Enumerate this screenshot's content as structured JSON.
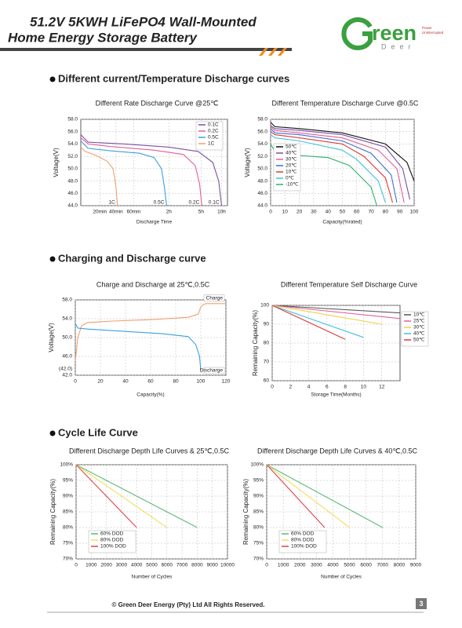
{
  "header": {
    "title_lines": [
      "51.2V 5KWH LiFePO4 Wall-Mounted",
      "Home Energy Storage Battery"
    ],
    "logo": {
      "word": "reen",
      "subword": "Deer",
      "tagline_lines": [
        "Power",
        "Uninterrupted"
      ]
    }
  },
  "sections": [
    "Different current/Temperature Discharge curves",
    "Charging and Discharge curve",
    "Cycle Life Curve"
  ],
  "footer": {
    "copyright": "© Green Deer Energy (Pty) Ltd All Rights Reserved.",
    "page": "3"
  },
  "chart_data": [
    {
      "type": "line",
      "title": "Different Rate Discharge Curve @25℃",
      "x_label": "Discharge Time",
      "y_label": "Voltage(V)",
      "grid": true,
      "legend": "top-right",
      "end_labels": true,
      "xlim": [
        0,
        100
      ],
      "xticks": [
        {
          "value": 13,
          "label": "20min"
        },
        {
          "value": 24,
          "label": "40min"
        },
        {
          "value": 36,
          "label": "60min"
        },
        {
          "value": 60,
          "label": "2h"
        },
        {
          "value": 82,
          "label": "5h"
        },
        {
          "value": 96,
          "label": "10h"
        }
      ],
      "ylim": [
        44,
        58
      ],
      "yticks": [
        {
          "value": 44,
          "label": "44.0"
        },
        {
          "value": 46,
          "label": "46.0"
        },
        {
          "value": 48,
          "label": "48.0"
        },
        {
          "value": 50,
          "label": "50.0"
        },
        {
          "value": 52,
          "label": "52.0"
        },
        {
          "value": 54,
          "label": "54.0"
        },
        {
          "value": 56,
          "label": "56.0"
        },
        {
          "value": 58,
          "label": "58.0"
        }
      ],
      "series": [
        {
          "name": "0.1C",
          "color": "#7b4fa0",
          "x": [
            0,
            5,
            30,
            60,
            80,
            90,
            94,
            96
          ],
          "values": [
            55.5,
            54.3,
            54,
            53.5,
            52.8,
            51,
            48,
            44
          ]
        },
        {
          "name": "0.2C",
          "color": "#e0609a",
          "x": [
            0,
            5,
            20,
            50,
            70,
            78,
            81,
            82.5
          ],
          "values": [
            55,
            54,
            53.6,
            53,
            52.3,
            50.5,
            47.5,
            44
          ]
        },
        {
          "name": "0.5C",
          "color": "#3aa0e0",
          "x": [
            0,
            5,
            20,
            40,
            50,
            55,
            57,
            58.5
          ],
          "values": [
            54.5,
            53.3,
            52.9,
            52.5,
            51.8,
            50,
            47,
            44
          ]
        },
        {
          "name": "1C",
          "color": "#f0a070",
          "x": [
            0,
            3,
            10,
            18,
            22,
            24,
            25
          ],
          "values": [
            53.5,
            52.8,
            52.2,
            51.2,
            50,
            47,
            44
          ]
        }
      ]
    },
    {
      "type": "line",
      "title": "Different Temperature Discharge Curve @0.5C",
      "x_label": "Capacity(%rated)",
      "y_label": "Voltage(V)",
      "grid": true,
      "legend": "center-left",
      "xlim": [
        0,
        100
      ],
      "xticks": [
        0,
        10,
        20,
        30,
        40,
        50,
        60,
        70,
        80,
        90,
        100
      ],
      "ylim": [
        44,
        58
      ],
      "yticks": [
        {
          "value": 44,
          "label": "44.0"
        },
        {
          "value": 46,
          "label": "46.0"
        },
        {
          "value": 48,
          "label": "48.0"
        },
        {
          "value": 50,
          "label": "50.0"
        },
        {
          "value": 52,
          "label": "52.0"
        },
        {
          "value": 54,
          "label": "54.0"
        },
        {
          "value": 56,
          "label": "56.0"
        },
        {
          "value": 58,
          "label": "58.0"
        }
      ],
      "series": [
        {
          "name": "50℃",
          "color": "#111111",
          "x": [
            0,
            3,
            20,
            50,
            80,
            95,
            100
          ],
          "values": [
            57.5,
            56.8,
            56.5,
            55.8,
            54,
            51,
            48
          ]
        },
        {
          "name": "40℃",
          "color": "#7b4fa0",
          "x": [
            0,
            3,
            20,
            50,
            80,
            92,
            97
          ],
          "values": [
            57,
            56.5,
            56.2,
            55.5,
            53.5,
            50,
            45
          ]
        },
        {
          "name": "30℃",
          "color": "#e0609a",
          "x": [
            0,
            3,
            20,
            50,
            75,
            88,
            93
          ],
          "values": [
            56.8,
            56.2,
            55.8,
            55,
            53,
            50,
            44.5
          ]
        },
        {
          "name": "20℃",
          "color": "#3a70d0",
          "x": [
            0,
            3,
            20,
            50,
            70,
            84,
            88
          ],
          "values": [
            56.5,
            55.8,
            55.5,
            54.5,
            52.5,
            49,
            44.5
          ]
        },
        {
          "name": "10℃",
          "color": "#e03a3a",
          "x": [
            0,
            3,
            20,
            50,
            65,
            80,
            85
          ],
          "values": [
            56,
            55.5,
            55,
            54,
            52,
            48.5,
            44.5
          ]
        },
        {
          "name": "0℃",
          "color": "#40c0e0",
          "x": [
            0,
            3,
            20,
            50,
            60,
            75,
            80
          ],
          "values": [
            55.5,
            55,
            54.5,
            53,
            51.5,
            48,
            44.5
          ]
        },
        {
          "name": "-10℃",
          "color": "#30b070",
          "x": [
            0,
            3,
            10,
            40,
            55,
            70,
            74
          ],
          "values": [
            54,
            52.8,
            52.3,
            51.8,
            50.5,
            47,
            44
          ]
        }
      ]
    },
    {
      "type": "line",
      "title": "Charge and Discharge at 25℃,0.5C",
      "x_label": "Capacity(%)",
      "y_label": "Voltage(V)",
      "grid": true,
      "legend": "none",
      "annotations": [
        "(42.0)"
      ],
      "xlim": [
        0,
        120
      ],
      "xticks": [
        0,
        20,
        40,
        60,
        80,
        100,
        120
      ],
      "ylim": [
        42,
        58
      ],
      "yticks": [
        {
          "value": 42,
          "label": "42.0"
        },
        {
          "value": 46,
          "label": "46.0"
        },
        {
          "value": 50,
          "label": "50.0"
        },
        {
          "value": 54,
          "label": "54.0"
        },
        {
          "value": 58,
          "label": "58.0"
        }
      ],
      "series": [
        {
          "name": "Charge",
          "color": "#f0a070",
          "x": [
            0,
            2,
            5,
            10,
            30,
            60,
            90,
            98,
            100,
            102,
            104,
            120
          ],
          "values": [
            45,
            50,
            52.5,
            53.2,
            53.5,
            53.8,
            54.3,
            55,
            56.5,
            57,
            57.2,
            57.2
          ]
        },
        {
          "name": "Discharge",
          "color": "#3aa0e0",
          "x": [
            0,
            2,
            10,
            40,
            70,
            90,
            96,
            99,
            100
          ],
          "values": [
            53,
            52,
            51.8,
            51.3,
            50.8,
            50.2,
            48.5,
            46,
            43
          ]
        }
      ]
    },
    {
      "type": "line",
      "title": "Different Temperature Self Discharge Curve",
      "x_label": "Storage Time(Months)",
      "y_label": "Remaining Capacity(%)",
      "grid": true,
      "legend": "right",
      "xlim": [
        0,
        14
      ],
      "xticks": [
        0,
        2,
        4,
        6,
        8,
        10,
        12
      ],
      "ylim": [
        60,
        100
      ],
      "yticks": [
        60,
        70,
        80,
        90,
        100
      ],
      "series": [
        {
          "name": "10℃",
          "color": "#555555",
          "x": [
            0,
            14
          ],
          "values": [
            100,
            96
          ]
        },
        {
          "name": "25℃",
          "color": "#e0609a",
          "x": [
            0,
            14
          ],
          "values": [
            100,
            93
          ]
        },
        {
          "name": "30℃",
          "color": "#f0d040",
          "x": [
            0,
            12
          ],
          "values": [
            100,
            90
          ]
        },
        {
          "name": "40℃",
          "color": "#40c0e0",
          "x": [
            0,
            10
          ],
          "values": [
            100,
            83
          ]
        },
        {
          "name": "50℃",
          "color": "#e03a3a",
          "x": [
            0,
            8
          ],
          "values": [
            100,
            82
          ]
        }
      ]
    },
    {
      "type": "line",
      "title": "Different Discharge Depth Life Curves & 25℃,0.5C",
      "x_label": "Number of Cycles",
      "y_label": "Remaining Capacity(%)",
      "grid": true,
      "legend": "bottom-left",
      "xlim": [
        0,
        10000
      ],
      "xticks": [
        0,
        1000,
        2000,
        3000,
        4000,
        5000,
        6000,
        7000,
        8000,
        9000,
        10000
      ],
      "ylim": [
        70,
        100
      ],
      "yticks": [
        {
          "value": 70,
          "label": "70%"
        },
        {
          "value": 75,
          "label": "75%"
        },
        {
          "value": 80,
          "label": "80%"
        },
        {
          "value": 85,
          "label": "85%"
        },
        {
          "value": 90,
          "label": "90%"
        },
        {
          "value": 95,
          "label": "95%"
        },
        {
          "value": 100,
          "label": "100%"
        }
      ],
      "series": [
        {
          "name": "60% DOD",
          "color": "#5cb87a",
          "x": [
            0,
            8000
          ],
          "values": [
            100,
            80
          ]
        },
        {
          "name": "80% DOD",
          "color": "#f0e060",
          "x": [
            0,
            6000
          ],
          "values": [
            100,
            80
          ]
        },
        {
          "name": "100% DOD",
          "color": "#e04050",
          "x": [
            0,
            4000
          ],
          "values": [
            100,
            80
          ]
        }
      ]
    },
    {
      "type": "line",
      "title": "Different Discharge Depth Life Curves & 40℃,0.5C",
      "x_label": "Number of Cycles",
      "y_label": "Remaining Capacity(%)",
      "grid": true,
      "legend": "bottom-left",
      "xlim": [
        0,
        9000
      ],
      "xticks": [
        0,
        1000,
        2000,
        3000,
        4000,
        5000,
        6000,
        7000,
        8000,
        9000
      ],
      "ylim": [
        70,
        100
      ],
      "yticks": [
        {
          "value": 70,
          "label": "70%"
        },
        {
          "value": 75,
          "label": "75%"
        },
        {
          "value": 80,
          "label": "80%"
        },
        {
          "value": 85,
          "label": "85%"
        },
        {
          "value": 90,
          "label": "90%"
        },
        {
          "value": 95,
          "label": "95%"
        },
        {
          "value": 100,
          "label": "100%"
        }
      ],
      "series": [
        {
          "name": "60% DOD",
          "color": "#5cb87a",
          "x": [
            0,
            7000
          ],
          "values": [
            100,
            80
          ]
        },
        {
          "name": "80% DOD",
          "color": "#f0e060",
          "x": [
            0,
            5000
          ],
          "values": [
            100,
            80
          ]
        },
        {
          "name": "100% DOD",
          "color": "#e04050",
          "x": [
            0,
            3500
          ],
          "values": [
            100,
            80
          ]
        }
      ]
    }
  ]
}
